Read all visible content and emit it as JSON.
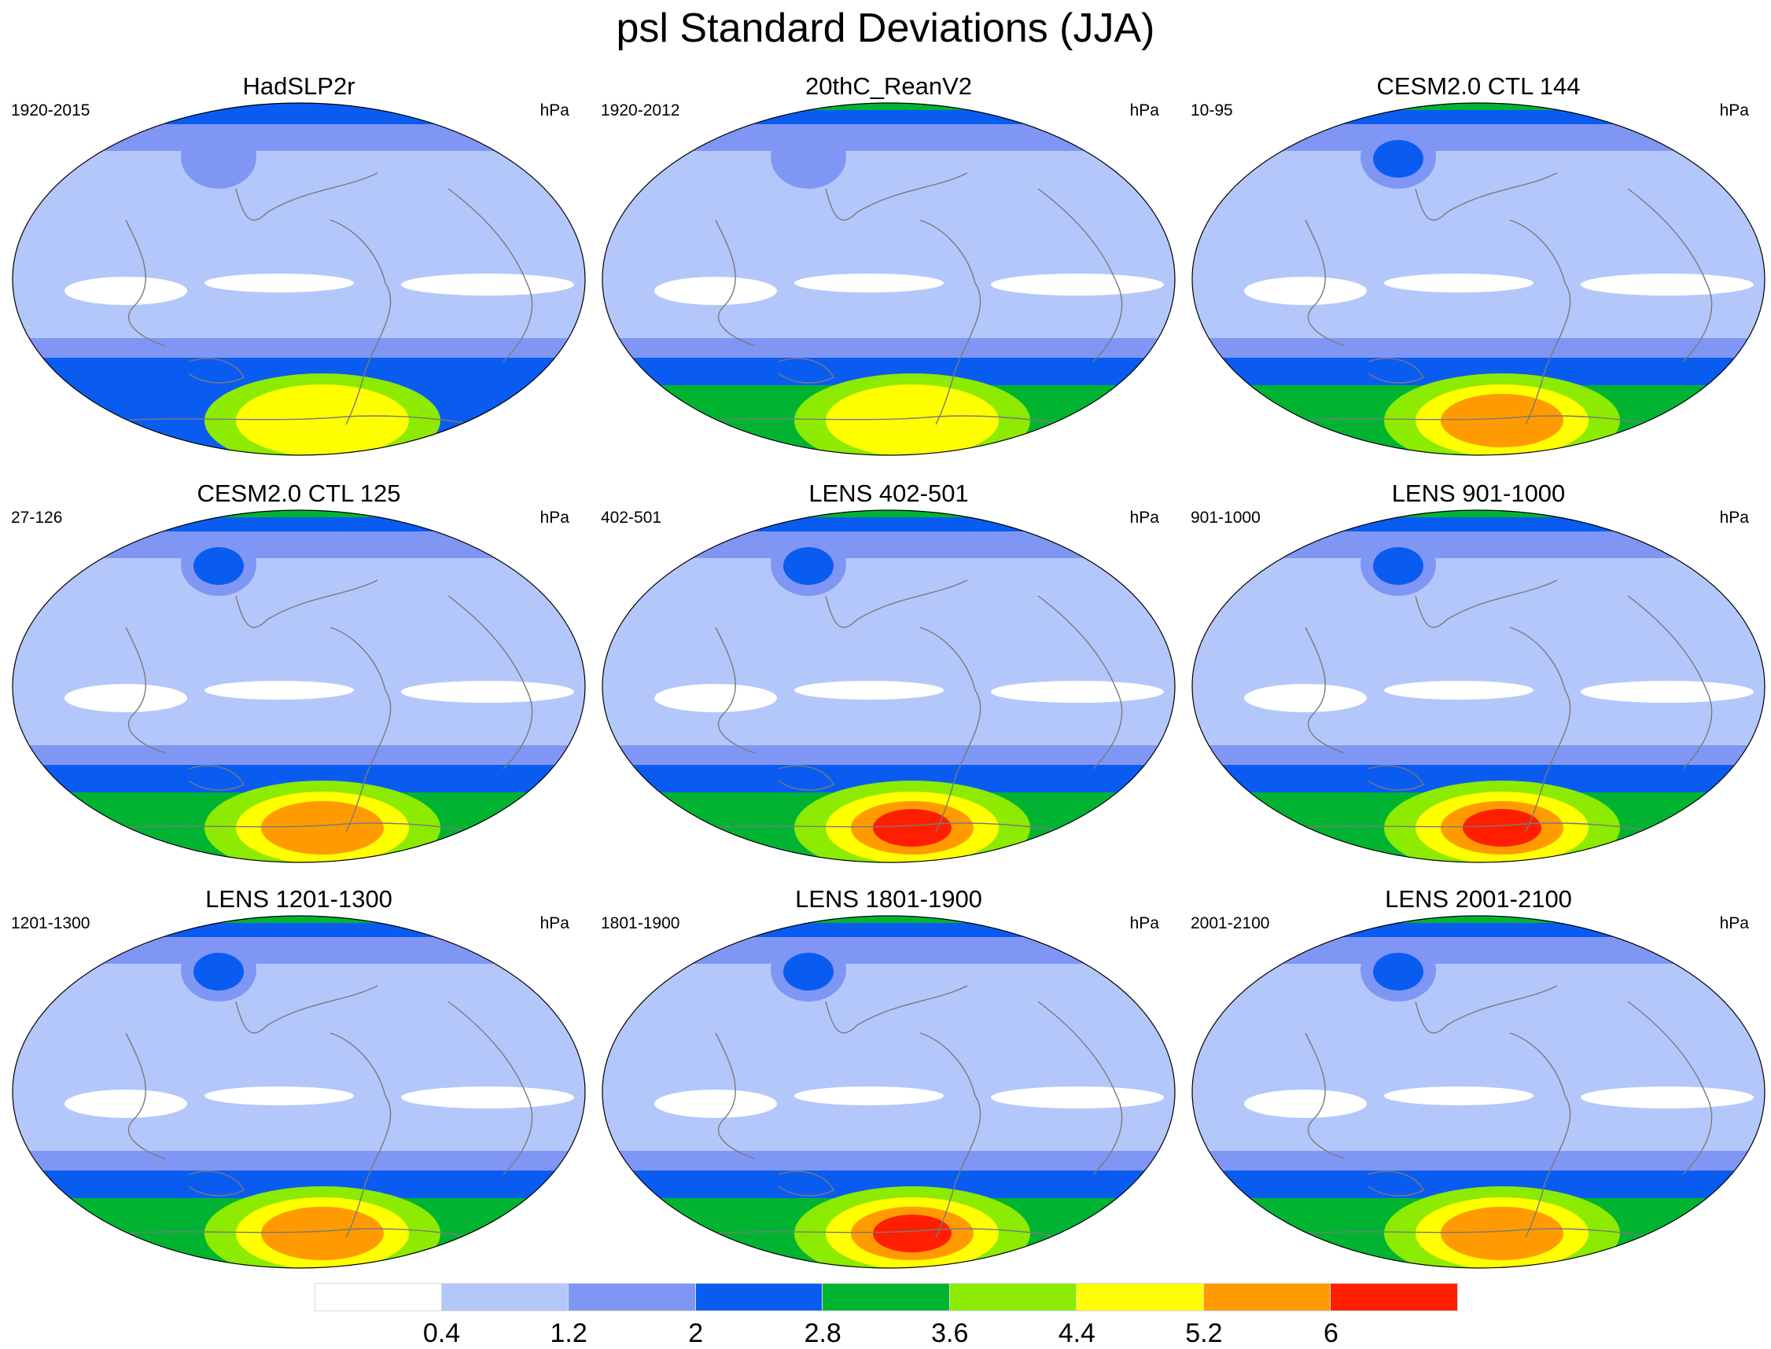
{
  "title": "psl Standard Deviations (JJA)",
  "colorbar": {
    "colors": [
      "#ffffff",
      "#b4c7fa",
      "#8096f5",
      "#0a5cf0",
      "#00b432",
      "#8ceb00",
      "#ffff00",
      "#ff9b00",
      "#ff1e00"
    ],
    "labels": [
      "0.4",
      "1.2",
      "2",
      "2.8",
      "3.6",
      "4.4",
      "5.2",
      "6"
    ]
  },
  "panels": [
    {
      "title": "HadSLP2r",
      "period": "1920-2015",
      "units": "hPa",
      "antarctic_max_level": 6,
      "subpolar_jet_level": 3
    },
    {
      "title": "20thC_ReanV2",
      "period": "1920-2012",
      "units": "hPa",
      "antarctic_max_level": 6,
      "subpolar_jet_level": 4
    },
    {
      "title": "CESM2.0 CTL 144",
      "period": "10-95",
      "units": "hPa",
      "antarctic_max_level": 7,
      "subpolar_jet_level": 4
    },
    {
      "title": "CESM2.0 CTL 125",
      "period": "27-126",
      "units": "hPa",
      "antarctic_max_level": 7,
      "subpolar_jet_level": 4
    },
    {
      "title": "LENS 402-501",
      "period": "402-501",
      "units": "hPa",
      "antarctic_max_level": 8,
      "subpolar_jet_level": 4
    },
    {
      "title": "LENS 901-1000",
      "period": "901-1000",
      "units": "hPa",
      "antarctic_max_level": 8,
      "subpolar_jet_level": 4
    },
    {
      "title": "LENS 1201-1300",
      "period": "1201-1300",
      "units": "hPa",
      "antarctic_max_level": 7,
      "subpolar_jet_level": 4
    },
    {
      "title": "LENS 1801-1900",
      "period": "1801-1900",
      "units": "hPa",
      "antarctic_max_level": 8,
      "subpolar_jet_level": 4
    },
    {
      "title": "LENS 2001-2100",
      "period": "2001-2100",
      "units": "hPa",
      "antarctic_max_level": 7,
      "subpolar_jet_level": 4
    }
  ]
}
